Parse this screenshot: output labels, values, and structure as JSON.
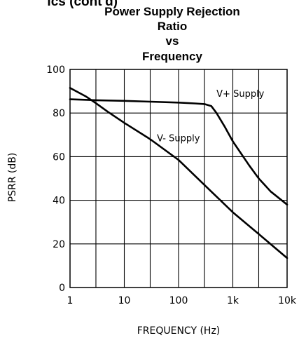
{
  "header": {
    "clipped_text": "ics (cont'd)"
  },
  "chart_data": {
    "type": "line",
    "title_lines": [
      "Power Supply Rejection",
      "Ratio",
      "vs",
      "Frequency"
    ],
    "xlabel": "FREQUENCY (Hz)",
    "ylabel": "PSRR (dB)",
    "x_scale": "log",
    "xlim": [
      1,
      10000
    ],
    "ylim": [
      0,
      100
    ],
    "x_ticks": [
      {
        "value": 1,
        "label": "1"
      },
      {
        "value": 10,
        "label": "10"
      },
      {
        "value": 100,
        "label": "100"
      },
      {
        "value": 1000,
        "label": "1k"
      },
      {
        "value": 10000,
        "label": "10k"
      }
    ],
    "y_ticks": [
      {
        "value": 0,
        "label": "0"
      },
      {
        "value": 20,
        "label": "20"
      },
      {
        "value": 40,
        "label": "40"
      },
      {
        "value": 60,
        "label": "60"
      },
      {
        "value": 80,
        "label": "80"
      },
      {
        "value": 100,
        "label": "100"
      }
    ],
    "grid": true,
    "series": [
      {
        "name": "V+ Supply",
        "color": "#000000",
        "x": [
          1,
          3,
          10,
          30,
          100,
          200,
          300,
          400,
          500,
          700,
          1000,
          2000,
          3000,
          5000,
          10000
        ],
        "y": [
          86.3,
          85.9,
          85.6,
          85.2,
          84.8,
          84.4,
          84.1,
          83.2,
          80,
          74,
          67,
          56,
          50,
          44,
          38
        ]
      },
      {
        "name": "V- Supply",
        "color": "#000000",
        "x": [
          1,
          2,
          3,
          5,
          10,
          30,
          100,
          300,
          1000,
          3000,
          10000
        ],
        "y": [
          91.5,
          87.5,
          84.5,
          80.5,
          75.5,
          68,
          58.5,
          47,
          34.5,
          24.5,
          13.5
        ]
      }
    ],
    "series_labels": [
      {
        "text": "V+ Supply",
        "x": 500,
        "y": 87.5
      },
      {
        "text": "V- Supply",
        "x": 40,
        "y": 67
      }
    ]
  }
}
